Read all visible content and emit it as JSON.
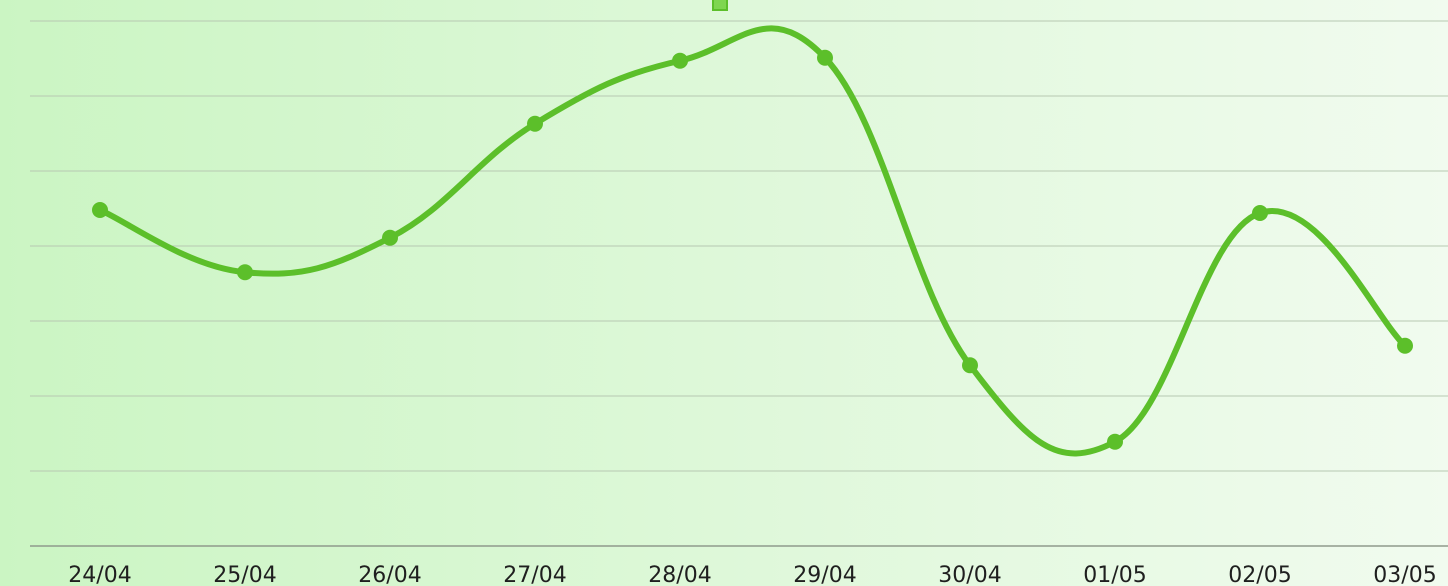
{
  "chart_data": {
    "type": "line",
    "categories": [
      "24/04",
      "25/04",
      "26/04",
      "27/04",
      "28/04",
      "29/04",
      "30/04",
      "01/05",
      "02/05",
      "03/05"
    ],
    "series": [
      {
        "color": "#5cbf2a",
        "values": [
          4.48,
          3.65,
          4.11,
          5.63,
          6.47,
          6.51,
          2.41,
          1.39,
          4.44,
          2.67
        ]
      }
    ],
    "ylim": [
      0,
      7
    ],
    "yticks": [
      0,
      1,
      2,
      3,
      4,
      5,
      6,
      7
    ],
    "grid": true
  }
}
